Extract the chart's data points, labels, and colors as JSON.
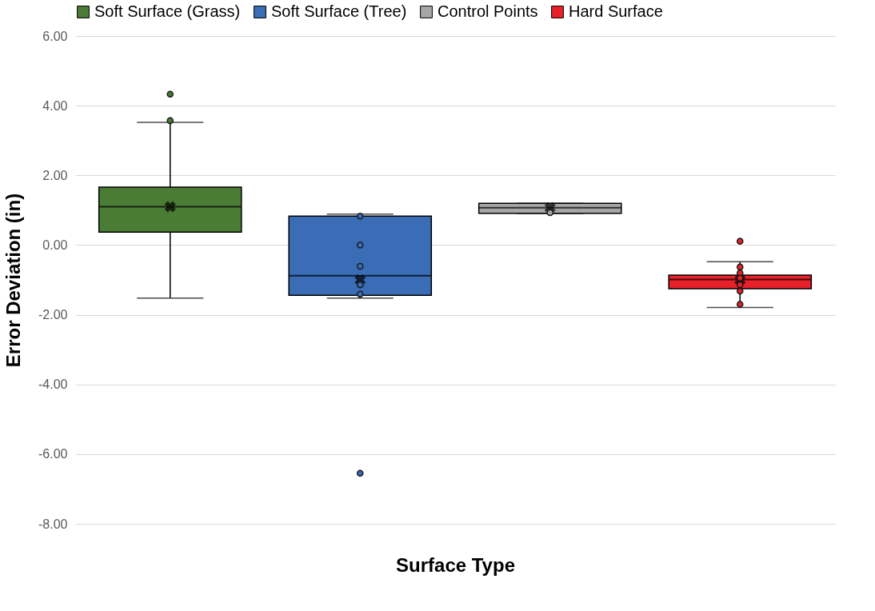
{
  "chart_data": {
    "type": "box",
    "xlabel": "Surface Type",
    "ylabel": "Error Deviation (in)",
    "categories": [
      null
    ],
    "ylim": [
      -8,
      6
    ],
    "yticks": [
      {
        "value": -8,
        "label": "-8.00"
      },
      {
        "value": -6,
        "label": "-6.00"
      },
      {
        "value": -4,
        "label": "-4.00"
      },
      {
        "value": -2,
        "label": "-2.00"
      },
      {
        "value": 0,
        "label": "0.00"
      },
      {
        "value": 2,
        "label": "2.00"
      },
      {
        "value": 4,
        "label": "4.00"
      },
      {
        "value": 6,
        "label": "6.00"
      }
    ],
    "grid": "y",
    "legend": "top",
    "marker": "circle",
    "series": [
      {
        "name": "Soft Surface (Grass)",
        "color": "#4a7c35",
        "boxes": [
          {
            "low": -1.52,
            "q1": 0.37,
            "median": 1.1,
            "q3": 1.66,
            "high": 3.52,
            "mean": 1.1,
            "outliers": [
              4.33,
              3.57
            ]
          }
        ]
      },
      {
        "name": "Soft Surface (Tree)",
        "color": "#3a6db5",
        "boxes": [
          {
            "low": -1.52,
            "q1": -1.44,
            "median": -0.88,
            "q3": 0.83,
            "high": 0.89,
            "mean": -1.0,
            "outliers": [
              -6.55,
              0.83,
              0.0,
              -0.61,
              -1.14,
              -1.41
            ]
          }
        ]
      },
      {
        "name": "Control Points",
        "color": "#a6a6a6",
        "boxes": [
          {
            "low": 0.91,
            "q1": 0.91,
            "median": 1.07,
            "q3": 1.2,
            "high": 1.2,
            "mean": 1.07,
            "outliers": [
              0.93
            ]
          }
        ]
      },
      {
        "name": "Hard Surface",
        "color": "#e8202a",
        "boxes": [
          {
            "low": -1.79,
            "q1": -1.25,
            "median": -0.99,
            "q3": -0.86,
            "high": -0.48,
            "mean": -1.0,
            "outliers": [
              0.11,
              -0.63,
              -0.8,
              -0.95,
              -1.14,
              -1.32,
              -1.7
            ]
          }
        ]
      }
    ]
  }
}
